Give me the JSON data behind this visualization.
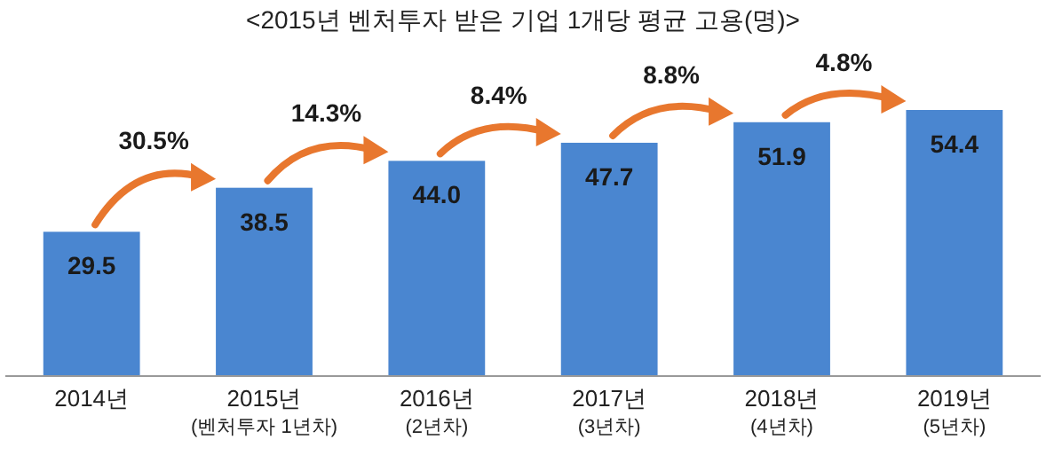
{
  "chart_data": {
    "type": "bar",
    "title": "<2015년 벤처투자 받은 기업 1개당 평균 고용(명)>",
    "categories": [
      "2014년",
      "2015년\n(벤처투자 1년차)",
      "2016년\n(2년차)",
      "2017년\n(3년차)",
      "2018년\n(4년차)",
      "2019년\n(5년차)"
    ],
    "values": [
      29.5,
      38.5,
      44.0,
      47.7,
      51.9,
      54.4
    ],
    "value_labels": [
      "29.5",
      "38.5",
      "44.0",
      "47.7",
      "51.9",
      "54.4"
    ],
    "color": "#4a86d0",
    "annotations": [
      "30.5%",
      "14.3%",
      "8.4%",
      "8.8%",
      "4.8%"
    ]
  }
}
